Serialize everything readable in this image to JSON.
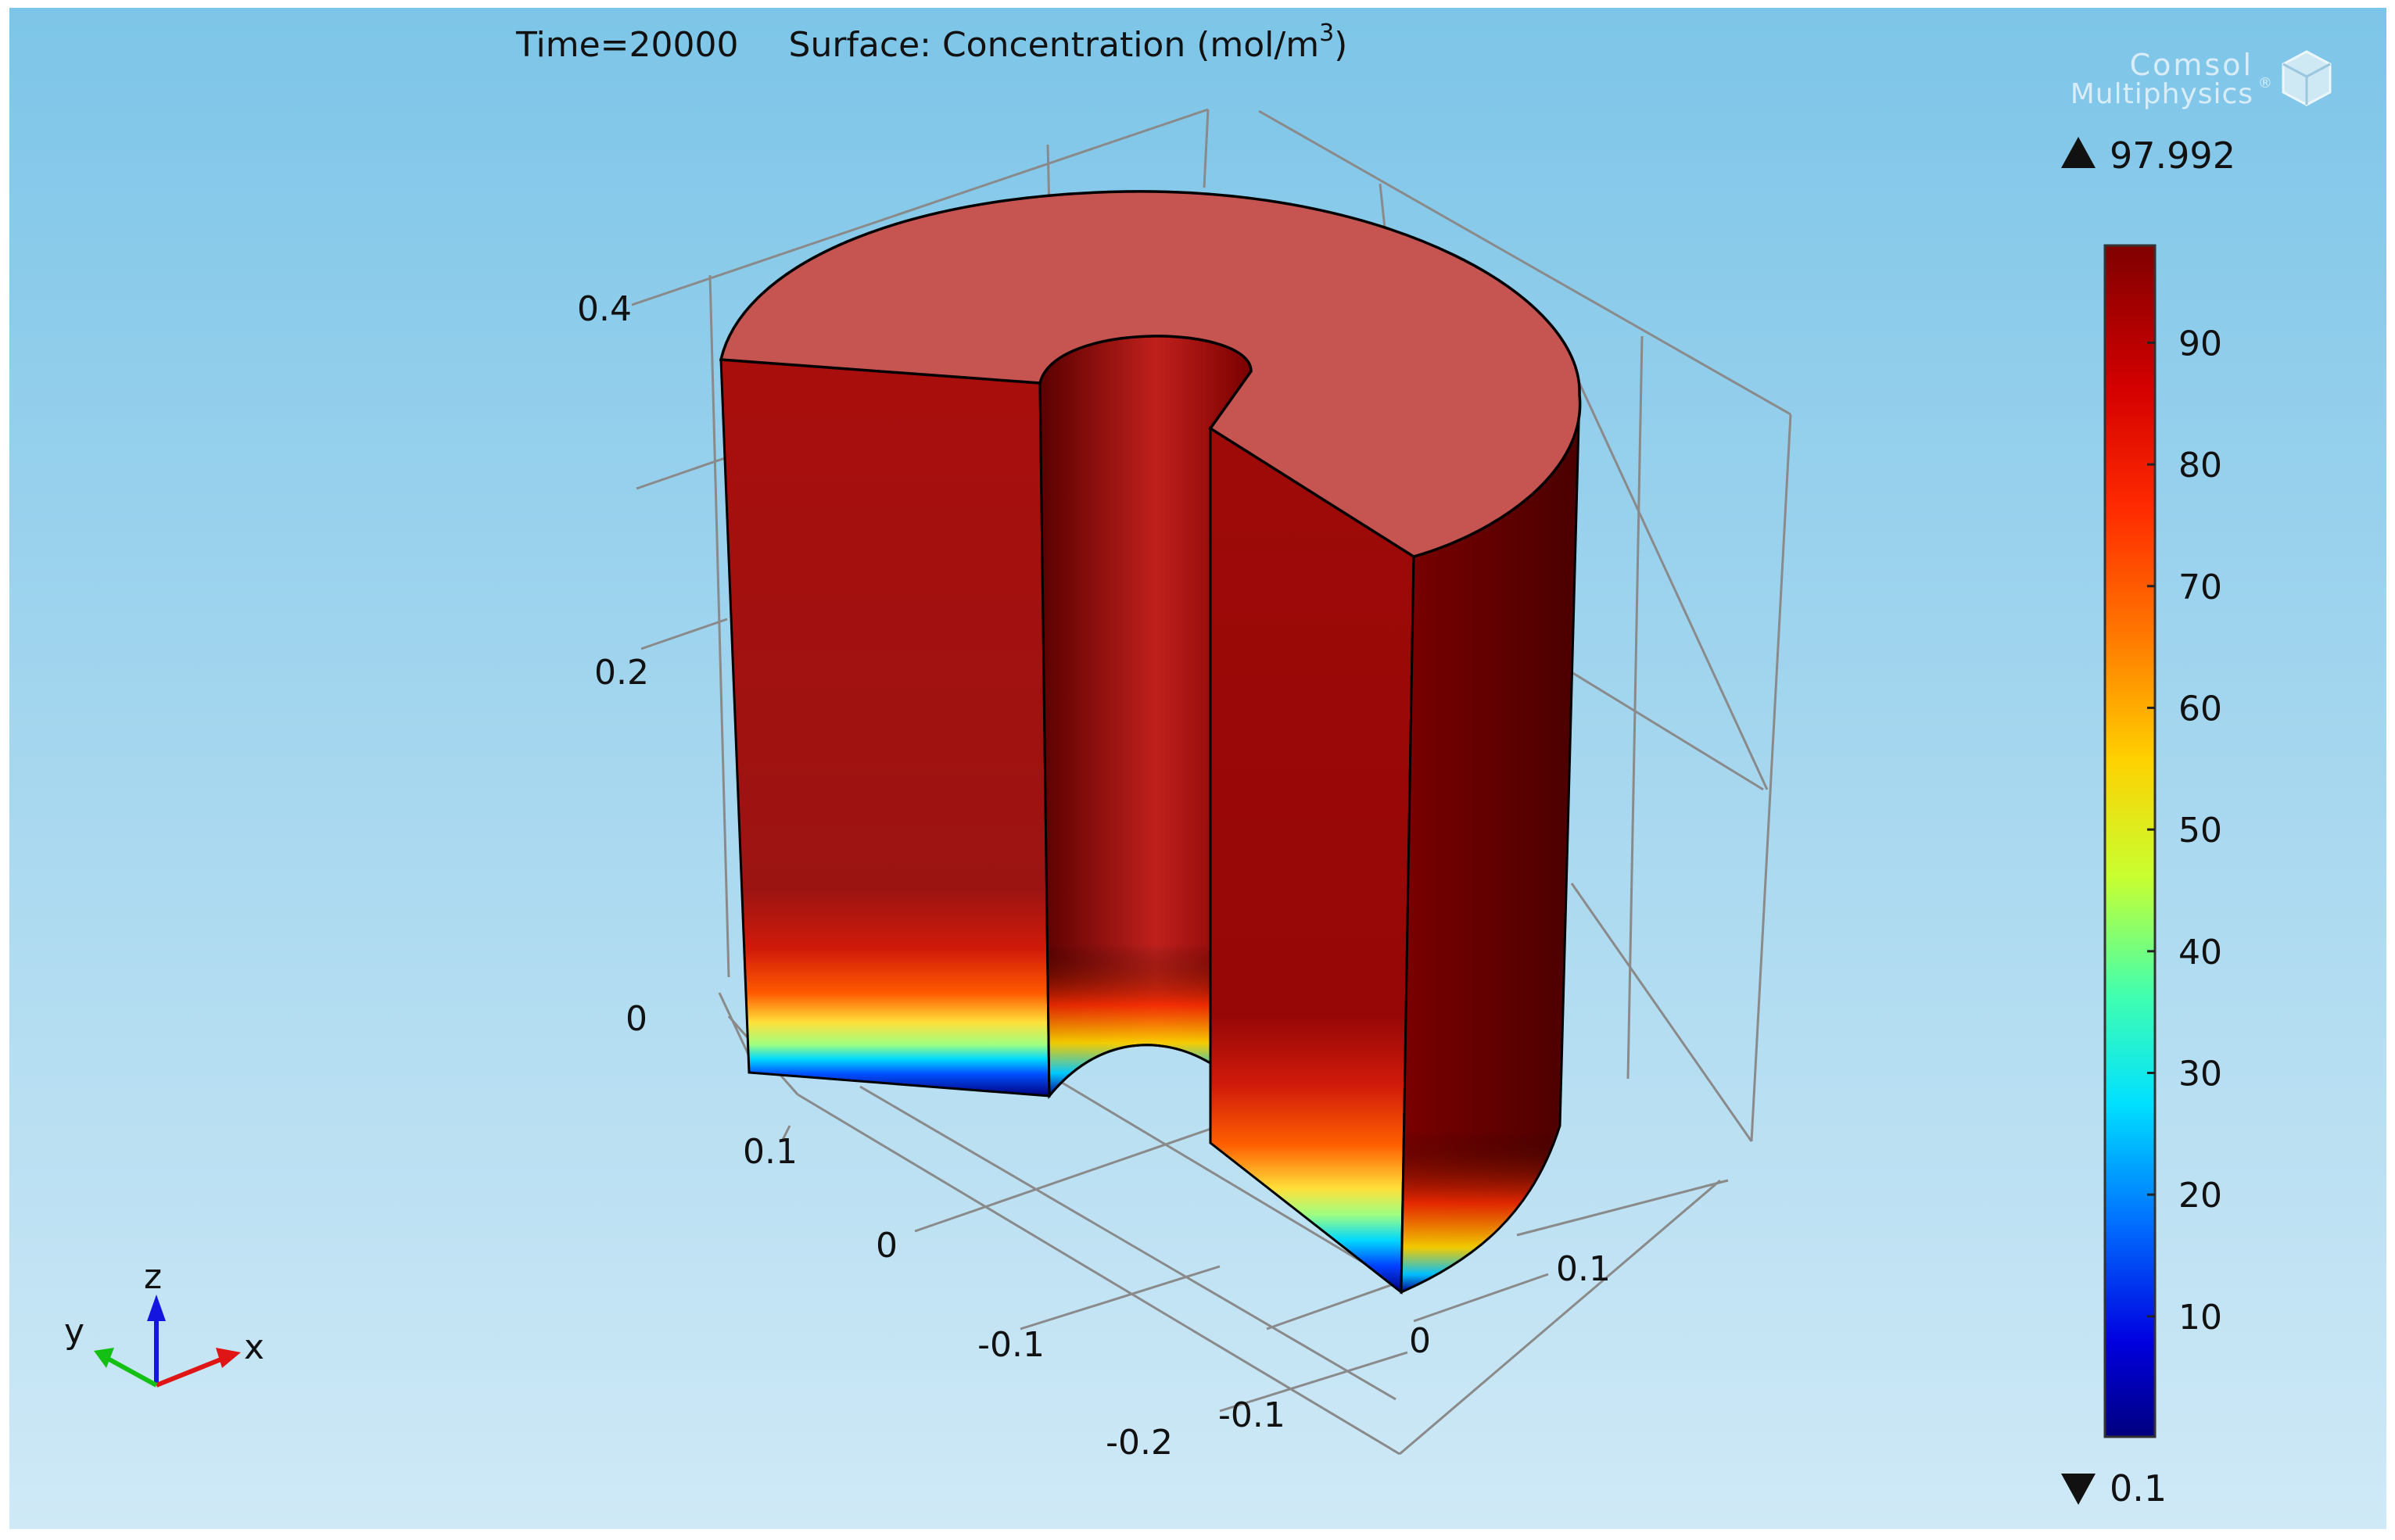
{
  "plot": {
    "title_time": "Time=20000",
    "title_surface": "Surface: Concentration (mol/m",
    "title_superscript": "3",
    "title_close": ")"
  },
  "logo": {
    "line1": "Comsol",
    "line2": "Multiphysics",
    "mark": "®"
  },
  "axes": {
    "z_ticks": [
      "0.4",
      "0.2",
      "0"
    ],
    "y_ticks": [
      "0.1",
      "0",
      "-0.1",
      "-0.2"
    ],
    "x_ticks": [
      "0.1",
      "0",
      "-0.1"
    ]
  },
  "triad": {
    "x": "x",
    "y": "y",
    "z": "z"
  },
  "colorbar": {
    "max_label": "97.992",
    "min_label": "0.1",
    "ticks": [
      "90",
      "80",
      "70",
      "60",
      "50",
      "40",
      "30",
      "20",
      "10"
    ],
    "range": [
      0.1,
      97.992
    ]
  },
  "colors": {
    "background_top": "#7ec6e8",
    "background_bottom": "#cde8f5",
    "top_face": "#c65552",
    "wall_red": "#a50f0c",
    "wall_dark": "#650000"
  }
}
